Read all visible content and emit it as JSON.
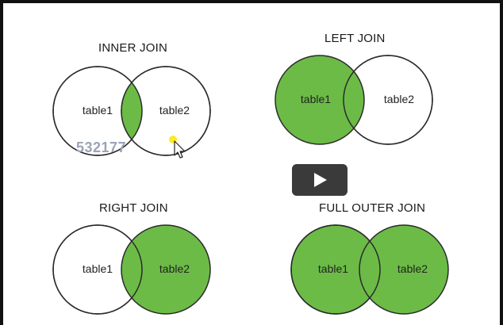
{
  "colors": {
    "fill": "#6cbb47",
    "stroke": "#2a2a2a",
    "background": "#ffffff"
  },
  "diagrams": [
    {
      "title": "INNER JOIN",
      "left_label": "table1",
      "right_label": "table2",
      "fill": "intersection"
    },
    {
      "title": "LEFT JOIN",
      "left_label": "table1",
      "right_label": "table2",
      "fill": "left"
    },
    {
      "title": "RIGHT JOIN",
      "left_label": "table1",
      "right_label": "table2",
      "fill": "right"
    },
    {
      "title": "FULL OUTER JOIN",
      "left_label": "table1",
      "right_label": "table2",
      "fill": "both"
    }
  ],
  "watermark": {
    "text": "532177"
  },
  "player": {
    "icon": "play-icon"
  },
  "pointer": {
    "icon": "cursor-icon"
  }
}
